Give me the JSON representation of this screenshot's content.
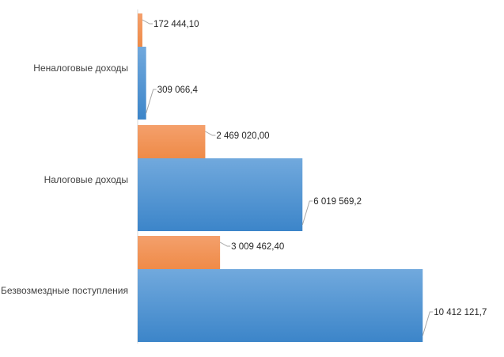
{
  "chart_data": {
    "type": "bar",
    "orientation": "horizontal",
    "categories": [
      "Неналоговые доходы",
      "Налоговые доходы",
      "Безвозмездные поступления"
    ],
    "series": [
      {
        "values": [
          172444.1,
          2469020.0,
          3009462.4
        ],
        "labels": [
          "172 444,10",
          "2 469 020,00",
          "3 009 462,40"
        ],
        "color": "#ed7d31"
      },
      {
        "values": [
          309066.4,
          6019569.2,
          10412121.7
        ],
        "labels": [
          "309 066,4",
          "6 019 569,2",
          "10 412 121,7"
        ],
        "color": "#5b9bd5"
      }
    ],
    "xlim": [
      0,
      12000000
    ],
    "grid": false,
    "legend": "none"
  }
}
